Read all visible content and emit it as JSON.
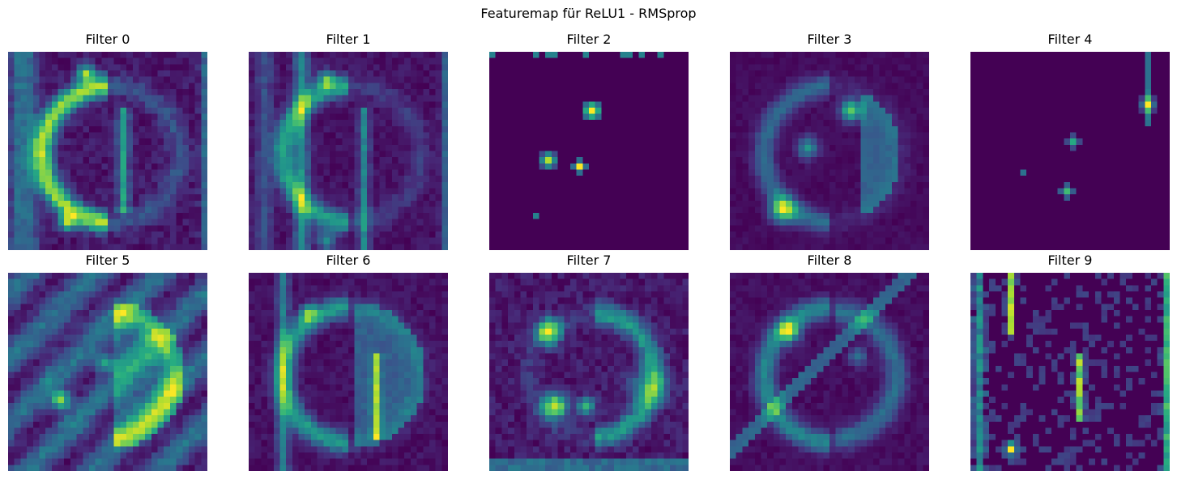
{
  "figure": {
    "suptitle": "Featuremap für ReLU1 - RMSprop",
    "background": "#ffffff"
  },
  "chart_data": {
    "type": "heatmap",
    "title": "Featuremap für ReLU1 - RMSprop",
    "layer": "ReLU1",
    "optimizer": "RMSprop",
    "colormap": "viridis",
    "axes": "off",
    "grid": false,
    "legend": "none",
    "map_resolution": [
      32,
      32
    ],
    "colors": {
      "low": "#440154",
      "mid": "#21918c",
      "high": "#fde725"
    },
    "panels": [
      {
        "title": "Filter 0",
        "filter": 0
      },
      {
        "title": "Filter 1",
        "filter": 1
      },
      {
        "title": "Filter 2",
        "filter": 2
      },
      {
        "title": "Filter 3",
        "filter": 3
      },
      {
        "title": "Filter 4",
        "filter": 4
      },
      {
        "title": "Filter 5",
        "filter": 5
      },
      {
        "title": "Filter 6",
        "filter": 6
      },
      {
        "title": "Filter 7",
        "filter": 7
      },
      {
        "title": "Filter 8",
        "filter": 8
      },
      {
        "title": "Filter 9",
        "filter": 9
      }
    ]
  }
}
